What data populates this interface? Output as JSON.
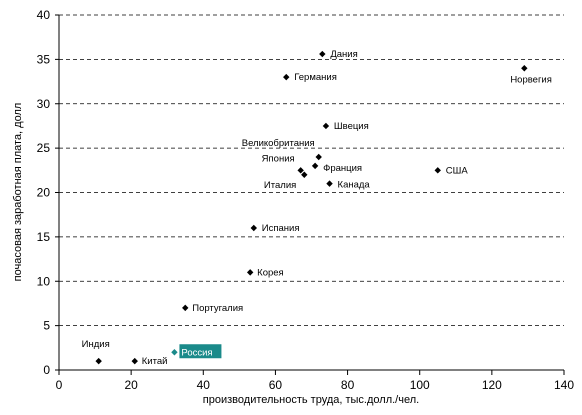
{
  "chart_data": {
    "type": "scatter",
    "xlabel": "производительность труда, тыс.долл./чел.",
    "ylabel": "почасовая заработная плата, долл",
    "xlim": [
      0,
      140
    ],
    "ylim": [
      0,
      40
    ],
    "x_ticks": [
      0,
      20,
      40,
      60,
      80,
      100,
      120,
      140
    ],
    "y_ticks": [
      0,
      5,
      10,
      15,
      20,
      25,
      30,
      35,
      40
    ],
    "grid": "horizontal dashed",
    "marker_color": "#000000",
    "highlight_color": "#1a8a8a",
    "points": [
      {
        "label": "Дания",
        "x": 73,
        "y": 35.6
      },
      {
        "label": "Германия",
        "x": 63,
        "y": 33
      },
      {
        "label": "Норвегия",
        "x": 129,
        "y": 34
      },
      {
        "label": "Швеция",
        "x": 74,
        "y": 27.5
      },
      {
        "label": "Великобритания",
        "x": 72,
        "y": 24
      },
      {
        "label": "Япония",
        "x": 67,
        "y": 22.5
      },
      {
        "label": "Франция",
        "x": 71,
        "y": 23
      },
      {
        "label": "Италия",
        "x": 68,
        "y": 22
      },
      {
        "label": "Канада",
        "x": 75,
        "y": 21
      },
      {
        "label": "США",
        "x": 105,
        "y": 22.5
      },
      {
        "label": "Испания",
        "x": 54,
        "y": 16
      },
      {
        "label": "Корея",
        "x": 53,
        "y": 11
      },
      {
        "label": "Португалия",
        "x": 35,
        "y": 7
      },
      {
        "label": "Индия",
        "x": 11,
        "y": 1
      },
      {
        "label": "Китай",
        "x": 21,
        "y": 1
      },
      {
        "label": "Россия",
        "x": 32,
        "y": 2,
        "highlight": true
      }
    ]
  }
}
